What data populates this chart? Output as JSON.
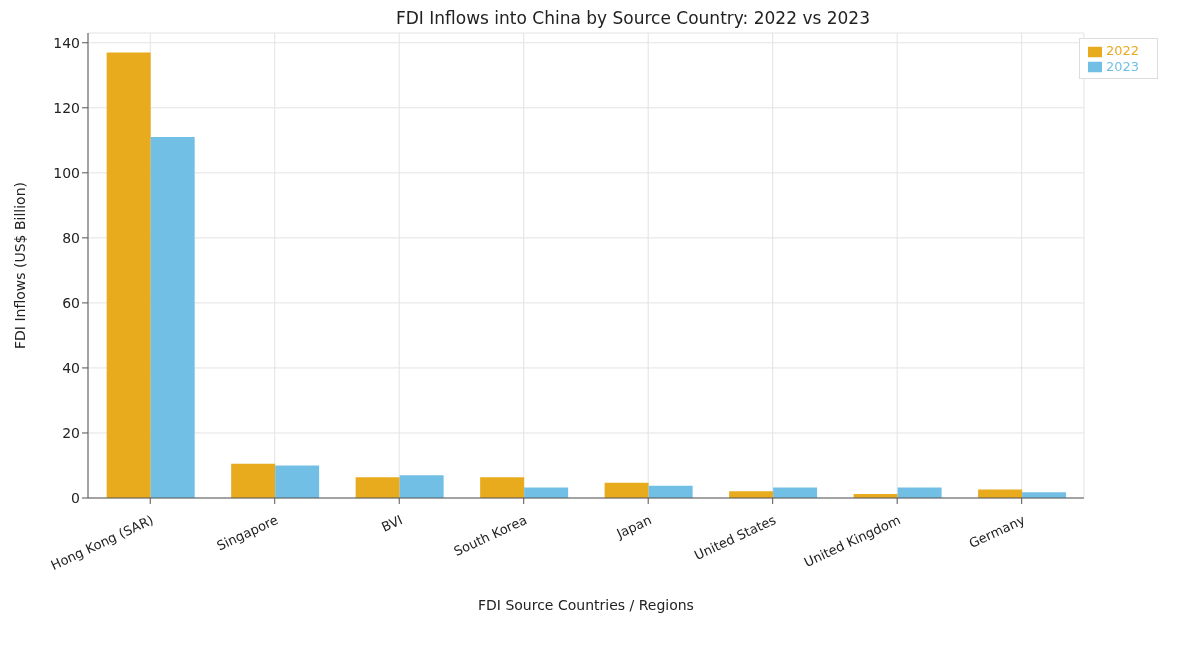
{
  "chart_data": {
    "type": "bar",
    "title": "FDI Inflows into China by Source Country: 2022 vs 2023",
    "xlabel": "FDI Source Countries / Regions",
    "ylabel": "FDI Inflows (US$ Billion)",
    "categories": [
      "Hong Kong (SAR)",
      "Singapore",
      "BVI",
      "South Korea",
      "Japan",
      "United States",
      "United Kingdom",
      "Germany"
    ],
    "series": [
      {
        "name": "2022",
        "color": "#e8ab1e",
        "values": [
          137,
          10.5,
          6.4,
          6.4,
          4.7,
          2.1,
          1.2,
          2.6
        ]
      },
      {
        "name": "2023",
        "color": "#72bfe6",
        "values": [
          111,
          10,
          7,
          3.2,
          3.8,
          3.2,
          3.2,
          1.8
        ]
      }
    ],
    "ylim": [
      0,
      143
    ],
    "yticks": [
      0,
      20,
      40,
      60,
      80,
      100,
      120,
      140
    ],
    "grid": true,
    "legend": "top right"
  }
}
